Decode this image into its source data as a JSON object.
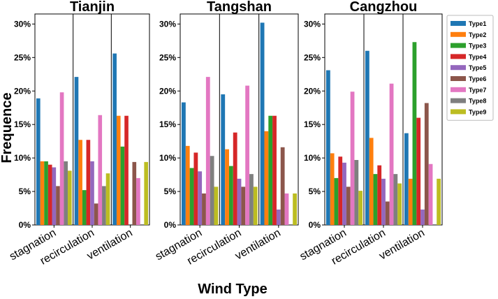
{
  "chart_data": {
    "type": "bar",
    "ylabel": "Frequence",
    "xlabel": "Wind Type",
    "ylim": [
      0,
      31.5
    ],
    "yticks": [
      0,
      5,
      10,
      15,
      20,
      25,
      30
    ],
    "ytick_labels": [
      "0%",
      "5%",
      "10%",
      "15%",
      "20%",
      "25%",
      "30%"
    ],
    "categories": [
      "stagnation",
      "recirculation",
      "ventilation"
    ],
    "legend_placement": "right",
    "grid": false,
    "series_names": [
      "Type1",
      "Type2",
      "Type3",
      "Type4",
      "Type5",
      "Type6",
      "Type7",
      "Type8",
      "Type9"
    ],
    "colors": [
      "#1f77b4",
      "#ff7f0e",
      "#2ca02c",
      "#d62728",
      "#9467bd",
      "#8c564b",
      "#e377c2",
      "#7f7f7f",
      "#bcbd22"
    ],
    "panels": [
      {
        "title": "Tianjin",
        "values": [
          [
            18.9,
            9.5,
            9.5,
            9.0,
            8.6,
            5.8,
            19.8,
            9.5,
            8.1
          ],
          [
            22.1,
            12.7,
            5.2,
            12.7,
            9.5,
            3.2,
            16.4,
            5.8,
            7.7
          ],
          [
            25.6,
            16.3,
            11.7,
            16.3,
            0,
            9.4,
            7.0,
            0,
            9.4
          ]
        ]
      },
      {
        "title": "Tangshan",
        "values": [
          [
            18.3,
            11.8,
            8.5,
            10.8,
            8.0,
            4.7,
            22.1,
            10.3,
            5.7
          ],
          [
            19.5,
            11.3,
            8.8,
            13.8,
            6.9,
            5.7,
            20.8,
            7.6,
            5.7
          ],
          [
            30.2,
            14.0,
            16.3,
            16.3,
            2.3,
            11.6,
            4.7,
            0,
            4.7
          ]
        ]
      },
      {
        "title": "Cangzhou",
        "values": [
          [
            23.1,
            10.7,
            7.0,
            10.2,
            9.3,
            5.7,
            19.9,
            9.7,
            5.1
          ],
          [
            26.0,
            13.0,
            7.6,
            8.9,
            6.9,
            3.5,
            21.1,
            7.6,
            6.2
          ],
          [
            13.7,
            6.9,
            27.3,
            16.0,
            2.3,
            18.2,
            9.1,
            0,
            6.9
          ]
        ]
      }
    ]
  }
}
